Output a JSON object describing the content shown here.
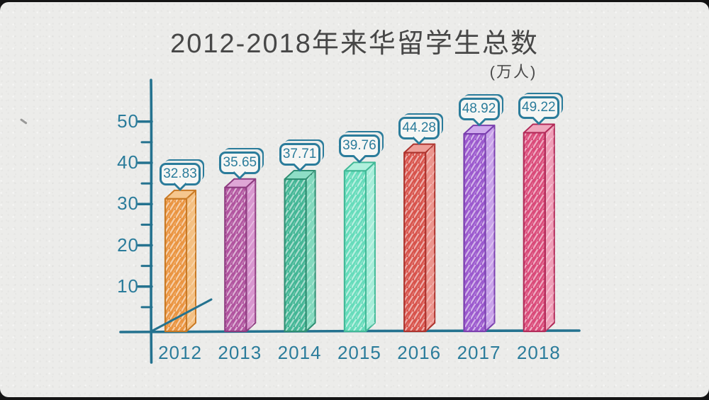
{
  "frame": {
    "title": "2012-2018年来华留学生总数",
    "unit_label": "(万人)"
  },
  "colors": {
    "paper": "#ececea",
    "letterbox": "#141414",
    "title_text": "#474747",
    "axis": "#24728f",
    "tick_text": "#2b7c9b",
    "callout_border": "#2b7c9b",
    "callout_fill": "#f6f6f4"
  },
  "chart_data": {
    "type": "bar",
    "title": "2012-2018年来华留学生总数",
    "unit": "万人",
    "xlabel": "",
    "ylabel": "万人",
    "categories": [
      "2012",
      "2013",
      "2014",
      "2015",
      "2016",
      "2017",
      "2018"
    ],
    "values": [
      32.83,
      35.65,
      37.71,
      39.76,
      44.28,
      48.92,
      49.22
    ],
    "annotations": [
      "32.83",
      "35.65",
      "37.71",
      "39.76",
      "44.28",
      "48.92",
      "49.22"
    ],
    "ylim": [
      0,
      55
    ],
    "yticks_labeled": [
      10,
      20,
      30,
      40,
      50
    ],
    "yticks_minor": [
      5,
      15,
      25,
      35,
      45
    ],
    "grid": false,
    "legend": false,
    "style": "hand-drawn 3d bars with value speech-bubble callouts",
    "bar_colors": [
      {
        "front": "#ea9440",
        "side": "#f4c083",
        "top": "#f6c78e",
        "outline": "#c97a25"
      },
      {
        "front": "#b1549f",
        "side": "#d897cf",
        "top": "#dfa6d6",
        "outline": "#8e3c80"
      },
      {
        "front": "#43b695",
        "side": "#83d9be",
        "top": "#8edec6",
        "outline": "#2f8e72"
      },
      {
        "front": "#66dcbb",
        "side": "#a6edd9",
        "top": "#b0f0dd",
        "outline": "#42b997"
      },
      {
        "front": "#d8534b",
        "side": "#ec958e",
        "top": "#ef9f98",
        "outline": "#ad332d"
      },
      {
        "front": "#9b59ce",
        "side": "#c9a3ea",
        "top": "#cfaaed",
        "outline": "#7a3fae"
      },
      {
        "front": "#da4a79",
        "side": "#ef9eb7",
        "top": "#f0a7bd",
        "outline": "#b22a58"
      }
    ]
  }
}
